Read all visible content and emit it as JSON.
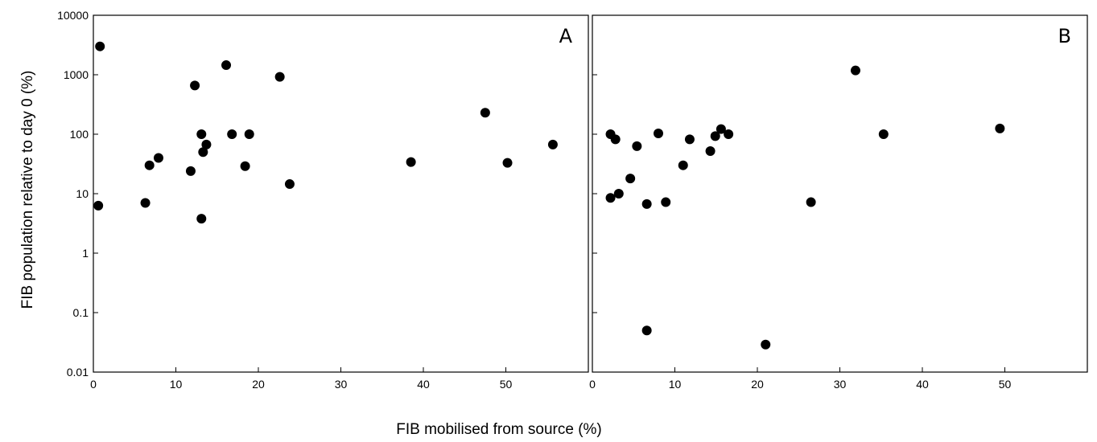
{
  "chart_data": {
    "type": "scatter",
    "xlabel": "FIB mobilised from source (%)",
    "ylabel": "FIB population relative to day 0 (%)",
    "yscale": "log",
    "ylim": [
      0.01,
      10000
    ],
    "y_ticks": [
      0.01,
      0.1,
      1,
      10,
      100,
      1000,
      10000
    ],
    "y_tick_labels": [
      "0.01",
      "0.1",
      "1",
      "10",
      "100",
      "1000",
      "10000"
    ],
    "grid": false,
    "marker_color": "#000000",
    "panels": [
      {
        "label": "A",
        "xlim": [
          0,
          60
        ],
        "x_ticks": [
          0,
          10,
          20,
          30,
          40,
          50
        ],
        "x_tick_labels": [
          "0",
          "10",
          "20",
          "30",
          "40",
          "50"
        ],
        "points": [
          {
            "x": 0.8,
            "y": 3000
          },
          {
            "x": 0.6,
            "y": 6.3
          },
          {
            "x": 6.3,
            "y": 7
          },
          {
            "x": 6.8,
            "y": 30
          },
          {
            "x": 7.9,
            "y": 40
          },
          {
            "x": 11.8,
            "y": 24
          },
          {
            "x": 12.3,
            "y": 660
          },
          {
            "x": 13.1,
            "y": 3.8
          },
          {
            "x": 13.1,
            "y": 100
          },
          {
            "x": 13.3,
            "y": 50
          },
          {
            "x": 13.7,
            "y": 67
          },
          {
            "x": 16.1,
            "y": 1450
          },
          {
            "x": 16.8,
            "y": 100
          },
          {
            "x": 18.4,
            "y": 29
          },
          {
            "x": 18.9,
            "y": 100
          },
          {
            "x": 22.6,
            "y": 920
          },
          {
            "x": 23.8,
            "y": 14.5
          },
          {
            "x": 38.5,
            "y": 34
          },
          {
            "x": 47.5,
            "y": 230
          },
          {
            "x": 50.2,
            "y": 33
          },
          {
            "x": 55.7,
            "y": 67
          }
        ]
      },
      {
        "label": "B",
        "xlim": [
          0,
          60
        ],
        "x_ticks": [
          0,
          10,
          20,
          30,
          40,
          50
        ],
        "x_tick_labels": [
          "0",
          "10",
          "20",
          "30",
          "40",
          "50"
        ],
        "points": [
          {
            "x": 2.2,
            "y": 100
          },
          {
            "x": 2.2,
            "y": 8.5
          },
          {
            "x": 2.8,
            "y": 82
          },
          {
            "x": 3.2,
            "y": 10
          },
          {
            "x": 4.6,
            "y": 18
          },
          {
            "x": 5.4,
            "y": 63
          },
          {
            "x": 6.6,
            "y": 6.7
          },
          {
            "x": 6.6,
            "y": 0.05
          },
          {
            "x": 8.0,
            "y": 103
          },
          {
            "x": 8.9,
            "y": 7.2
          },
          {
            "x": 11.0,
            "y": 30
          },
          {
            "x": 11.8,
            "y": 82
          },
          {
            "x": 14.3,
            "y": 52
          },
          {
            "x": 14.9,
            "y": 93
          },
          {
            "x": 15.6,
            "y": 122
          },
          {
            "x": 16.5,
            "y": 100
          },
          {
            "x": 21.0,
            "y": 0.029
          },
          {
            "x": 26.5,
            "y": 7.2
          },
          {
            "x": 31.9,
            "y": 1180
          },
          {
            "x": 35.3,
            "y": 100
          },
          {
            "x": 49.4,
            "y": 125
          }
        ]
      }
    ]
  }
}
